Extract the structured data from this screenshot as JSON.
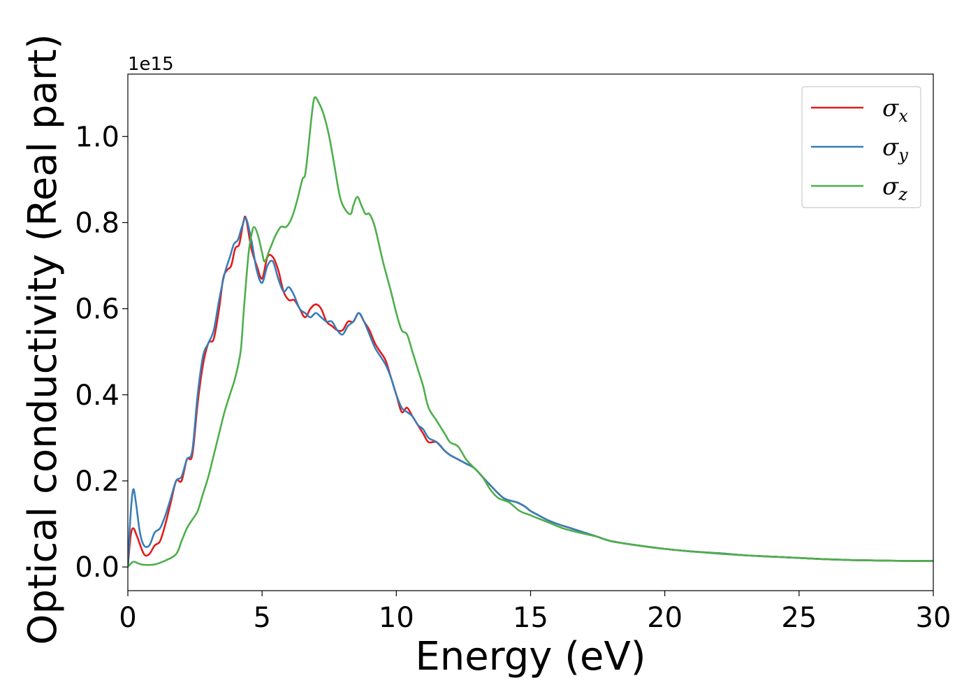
{
  "chart_data": {
    "type": "line",
    "xlabel": "Energy (eV)",
    "ylabel": "Optical conductivity (Real part)",
    "y_offset_label": "1e15",
    "xlim": [
      0,
      30
    ],
    "ylim": [
      -0.055,
      1.145
    ],
    "x_ticks": [
      0,
      5,
      10,
      15,
      20,
      25,
      30
    ],
    "x_tick_labels": [
      "0",
      "5",
      "10",
      "15",
      "20",
      "25",
      "30"
    ],
    "y_ticks": [
      0.0,
      0.2,
      0.4,
      0.6,
      0.8,
      1.0
    ],
    "y_tick_labels": [
      "0.0",
      "0.2",
      "0.4",
      "0.6",
      "0.8",
      "1.0"
    ],
    "grid": false,
    "legend_position": "top-right",
    "series": [
      {
        "name": "σx",
        "legend_base": "σ",
        "legend_sub": "x",
        "color": "#e41a1c",
        "points": [
          [
            0,
            0.0
          ],
          [
            0.1,
            0.07
          ],
          [
            0.2,
            0.09
          ],
          [
            0.35,
            0.07
          ],
          [
            0.6,
            0.03
          ],
          [
            0.8,
            0.03
          ],
          [
            1.0,
            0.05
          ],
          [
            1.2,
            0.06
          ],
          [
            1.4,
            0.1
          ],
          [
            1.6,
            0.15
          ],
          [
            1.8,
            0.2
          ],
          [
            2.0,
            0.2
          ],
          [
            2.2,
            0.25
          ],
          [
            2.4,
            0.26
          ],
          [
            2.6,
            0.38
          ],
          [
            2.8,
            0.47
          ],
          [
            3.0,
            0.52
          ],
          [
            3.2,
            0.53
          ],
          [
            3.4,
            0.6
          ],
          [
            3.55,
            0.67
          ],
          [
            3.7,
            0.69
          ],
          [
            3.85,
            0.7
          ],
          [
            4.0,
            0.74
          ],
          [
            4.15,
            0.75
          ],
          [
            4.3,
            0.8
          ],
          [
            4.4,
            0.81
          ],
          [
            4.6,
            0.74
          ],
          [
            4.8,
            0.7
          ],
          [
            5.0,
            0.67
          ],
          [
            5.2,
            0.72
          ],
          [
            5.4,
            0.72
          ],
          [
            5.6,
            0.69
          ],
          [
            5.8,
            0.64
          ],
          [
            6.0,
            0.62
          ],
          [
            6.2,
            0.62
          ],
          [
            6.4,
            0.6
          ],
          [
            6.6,
            0.58
          ],
          [
            6.8,
            0.6
          ],
          [
            7.0,
            0.61
          ],
          [
            7.2,
            0.6
          ],
          [
            7.4,
            0.57
          ],
          [
            7.6,
            0.56
          ],
          [
            7.8,
            0.55
          ],
          [
            8.0,
            0.55
          ],
          [
            8.2,
            0.57
          ],
          [
            8.4,
            0.57
          ],
          [
            8.6,
            0.59
          ],
          [
            8.8,
            0.57
          ],
          [
            9.0,
            0.55
          ],
          [
            9.2,
            0.52
          ],
          [
            9.4,
            0.5
          ],
          [
            9.6,
            0.48
          ],
          [
            9.8,
            0.44
          ],
          [
            10.0,
            0.4
          ],
          [
            10.2,
            0.36
          ],
          [
            10.4,
            0.37
          ],
          [
            10.6,
            0.35
          ],
          [
            10.8,
            0.33
          ],
          [
            11.0,
            0.31
          ],
          [
            11.2,
            0.29
          ],
          [
            11.5,
            0.29
          ],
          [
            11.8,
            0.27
          ],
          [
            12.0,
            0.26
          ],
          [
            12.3,
            0.25
          ],
          [
            12.6,
            0.24
          ],
          [
            12.9,
            0.23
          ],
          [
            13.2,
            0.21
          ],
          [
            13.5,
            0.19
          ],
          [
            14.0,
            0.16
          ],
          [
            14.5,
            0.15
          ],
          [
            14.8,
            0.14
          ],
          [
            15.0,
            0.13
          ],
          [
            15.3,
            0.12
          ],
          [
            15.6,
            0.11
          ],
          [
            16.0,
            0.1
          ],
          [
            16.5,
            0.09
          ],
          [
            17.0,
            0.08
          ],
          [
            17.5,
            0.07
          ],
          [
            18.0,
            0.06
          ],
          [
            19.0,
            0.05
          ],
          [
            20.0,
            0.042
          ],
          [
            21.0,
            0.036
          ],
          [
            22.0,
            0.032
          ],
          [
            23.0,
            0.027
          ],
          [
            24.0,
            0.024
          ],
          [
            25.0,
            0.021
          ],
          [
            26.0,
            0.018
          ],
          [
            27.0,
            0.016
          ],
          [
            28.0,
            0.015
          ],
          [
            29.0,
            0.014
          ],
          [
            30.0,
            0.014
          ]
        ]
      },
      {
        "name": "σy",
        "legend_base": "σ",
        "legend_sub": "y",
        "color": "#377eb8",
        "points": [
          [
            0,
            0.0
          ],
          [
            0.1,
            0.12
          ],
          [
            0.2,
            0.18
          ],
          [
            0.3,
            0.15
          ],
          [
            0.45,
            0.08
          ],
          [
            0.6,
            0.05
          ],
          [
            0.8,
            0.05
          ],
          [
            1.0,
            0.08
          ],
          [
            1.2,
            0.09
          ],
          [
            1.4,
            0.12
          ],
          [
            1.6,
            0.16
          ],
          [
            1.8,
            0.2
          ],
          [
            2.0,
            0.21
          ],
          [
            2.2,
            0.25
          ],
          [
            2.4,
            0.27
          ],
          [
            2.6,
            0.4
          ],
          [
            2.8,
            0.49
          ],
          [
            3.0,
            0.52
          ],
          [
            3.2,
            0.55
          ],
          [
            3.4,
            0.62
          ],
          [
            3.6,
            0.68
          ],
          [
            3.8,
            0.72
          ],
          [
            3.95,
            0.75
          ],
          [
            4.1,
            0.76
          ],
          [
            4.25,
            0.79
          ],
          [
            4.4,
            0.81
          ],
          [
            4.6,
            0.76
          ],
          [
            4.8,
            0.69
          ],
          [
            5.0,
            0.66
          ],
          [
            5.2,
            0.7
          ],
          [
            5.4,
            0.71
          ],
          [
            5.6,
            0.67
          ],
          [
            5.8,
            0.64
          ],
          [
            6.0,
            0.65
          ],
          [
            6.2,
            0.63
          ],
          [
            6.4,
            0.6
          ],
          [
            6.6,
            0.59
          ],
          [
            6.8,
            0.58
          ],
          [
            7.0,
            0.59
          ],
          [
            7.2,
            0.58
          ],
          [
            7.4,
            0.57
          ],
          [
            7.6,
            0.57
          ],
          [
            7.8,
            0.55
          ],
          [
            8.0,
            0.54
          ],
          [
            8.2,
            0.56
          ],
          [
            8.4,
            0.57
          ],
          [
            8.6,
            0.59
          ],
          [
            8.8,
            0.57
          ],
          [
            9.0,
            0.54
          ],
          [
            9.2,
            0.51
          ],
          [
            9.4,
            0.49
          ],
          [
            9.6,
            0.47
          ],
          [
            9.8,
            0.44
          ],
          [
            10.0,
            0.4
          ],
          [
            10.2,
            0.37
          ],
          [
            10.4,
            0.36
          ],
          [
            10.6,
            0.35
          ],
          [
            10.8,
            0.33
          ],
          [
            11.0,
            0.32
          ],
          [
            11.2,
            0.3
          ],
          [
            11.5,
            0.29
          ],
          [
            11.8,
            0.27
          ],
          [
            12.0,
            0.26
          ],
          [
            12.3,
            0.25
          ],
          [
            12.6,
            0.24
          ],
          [
            12.9,
            0.23
          ],
          [
            13.2,
            0.21
          ],
          [
            13.5,
            0.19
          ],
          [
            14.0,
            0.16
          ],
          [
            14.5,
            0.15
          ],
          [
            14.8,
            0.14
          ],
          [
            15.0,
            0.13
          ],
          [
            15.3,
            0.12
          ],
          [
            15.6,
            0.11
          ],
          [
            16.0,
            0.1
          ],
          [
            16.5,
            0.09
          ],
          [
            17.0,
            0.08
          ],
          [
            17.5,
            0.07
          ],
          [
            18.0,
            0.06
          ],
          [
            19.0,
            0.05
          ],
          [
            20.0,
            0.042
          ],
          [
            21.0,
            0.036
          ],
          [
            22.0,
            0.032
          ],
          [
            23.0,
            0.027
          ],
          [
            24.0,
            0.024
          ],
          [
            25.0,
            0.021
          ],
          [
            26.0,
            0.018
          ],
          [
            27.0,
            0.016
          ],
          [
            28.0,
            0.015
          ],
          [
            29.0,
            0.014
          ],
          [
            30.0,
            0.014
          ]
        ]
      },
      {
        "name": "σz",
        "legend_base": "σ",
        "legend_sub": "z",
        "color": "#4daf4a",
        "points": [
          [
            0,
            0.0
          ],
          [
            0.2,
            0.012
          ],
          [
            0.4,
            0.008
          ],
          [
            0.6,
            0.005
          ],
          [
            1.0,
            0.006
          ],
          [
            1.4,
            0.015
          ],
          [
            1.8,
            0.03
          ],
          [
            2.0,
            0.06
          ],
          [
            2.2,
            0.09
          ],
          [
            2.4,
            0.11
          ],
          [
            2.6,
            0.13
          ],
          [
            2.8,
            0.17
          ],
          [
            3.0,
            0.21
          ],
          [
            3.2,
            0.26
          ],
          [
            3.4,
            0.31
          ],
          [
            3.6,
            0.36
          ],
          [
            3.8,
            0.4
          ],
          [
            4.0,
            0.44
          ],
          [
            4.2,
            0.5
          ],
          [
            4.3,
            0.58
          ],
          [
            4.4,
            0.66
          ],
          [
            4.5,
            0.73
          ],
          [
            4.6,
            0.77
          ],
          [
            4.7,
            0.79
          ],
          [
            4.85,
            0.77
          ],
          [
            5.0,
            0.73
          ],
          [
            5.1,
            0.71
          ],
          [
            5.3,
            0.74
          ],
          [
            5.5,
            0.77
          ],
          [
            5.7,
            0.79
          ],
          [
            5.9,
            0.79
          ],
          [
            6.1,
            0.81
          ],
          [
            6.3,
            0.85
          ],
          [
            6.5,
            0.9
          ],
          [
            6.6,
            0.91
          ],
          [
            6.7,
            0.96
          ],
          [
            6.85,
            1.05
          ],
          [
            6.95,
            1.09
          ],
          [
            7.1,
            1.08
          ],
          [
            7.3,
            1.05
          ],
          [
            7.5,
            1.0
          ],
          [
            7.7,
            0.93
          ],
          [
            7.9,
            0.86
          ],
          [
            8.1,
            0.83
          ],
          [
            8.3,
            0.82
          ],
          [
            8.4,
            0.84
          ],
          [
            8.55,
            0.86
          ],
          [
            8.7,
            0.84
          ],
          [
            8.85,
            0.82
          ],
          [
            9.0,
            0.82
          ],
          [
            9.2,
            0.79
          ],
          [
            9.5,
            0.71
          ],
          [
            9.8,
            0.64
          ],
          [
            10.0,
            0.59
          ],
          [
            10.2,
            0.55
          ],
          [
            10.4,
            0.54
          ],
          [
            10.6,
            0.5
          ],
          [
            10.8,
            0.46
          ],
          [
            11.0,
            0.42
          ],
          [
            11.2,
            0.37
          ],
          [
            11.5,
            0.34
          ],
          [
            11.8,
            0.31
          ],
          [
            12.0,
            0.29
          ],
          [
            12.3,
            0.28
          ],
          [
            12.6,
            0.25
          ],
          [
            12.9,
            0.23
          ],
          [
            13.2,
            0.21
          ],
          [
            13.5,
            0.18
          ],
          [
            13.8,
            0.16
          ],
          [
            14.2,
            0.15
          ],
          [
            14.6,
            0.13
          ],
          [
            15.0,
            0.12
          ],
          [
            15.4,
            0.11
          ],
          [
            15.8,
            0.1
          ],
          [
            16.2,
            0.09
          ],
          [
            16.8,
            0.08
          ],
          [
            17.5,
            0.07
          ],
          [
            18.0,
            0.06
          ],
          [
            19.0,
            0.05
          ],
          [
            20.0,
            0.042
          ],
          [
            21.0,
            0.036
          ],
          [
            22.0,
            0.031
          ],
          [
            23.0,
            0.027
          ],
          [
            24.0,
            0.024
          ],
          [
            25.0,
            0.021
          ],
          [
            26.0,
            0.018
          ],
          [
            27.0,
            0.016
          ],
          [
            28.0,
            0.015
          ],
          [
            29.0,
            0.014
          ],
          [
            30.0,
            0.014
          ]
        ]
      }
    ]
  }
}
